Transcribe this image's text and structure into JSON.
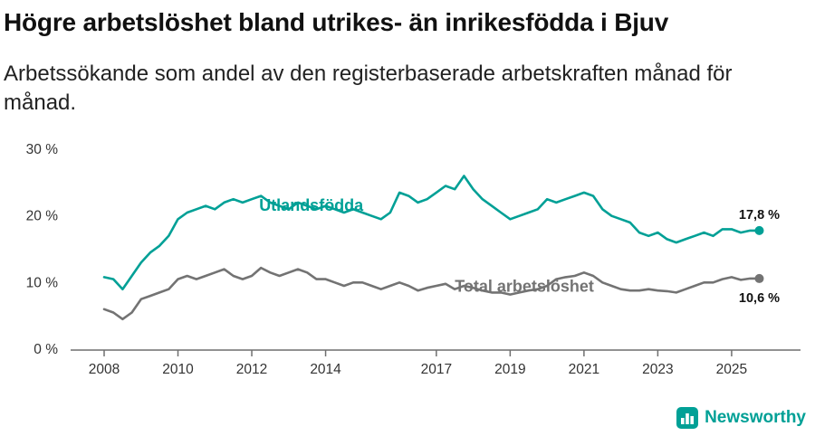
{
  "header": {
    "title": "Högre arbetslöshet bland utrikes- än inrikesfödda i Bjuv",
    "subtitle": "Arbetssökande som andel av den registerbaserade arbetskraften månad för månad."
  },
  "footer": {
    "brand": "Newsworthy"
  },
  "colors": {
    "accent": "#00a096",
    "total_line": "#737373",
    "axis": "#6f6f6f",
    "tick_text": "#333333"
  },
  "chart_data": {
    "type": "line",
    "title": "Högre arbetslöshet bland utrikes- än inrikesfödda i Bjuv",
    "subtitle": "Arbetssökande som andel av den registerbaserade arbetskraften månad för månad.",
    "xlabel": "",
    "ylabel": "",
    "ylim": [
      0,
      30
    ],
    "xlim": [
      2007.6,
      2026.3
    ],
    "grid": false,
    "legend": "inline-labels",
    "yticks": [
      0,
      10,
      20,
      30
    ],
    "ytick_labels": [
      "0 %",
      "10 %",
      "20 %",
      "30 %"
    ],
    "xticks": [
      2008,
      2010,
      2012,
      2014,
      2017,
      2019,
      2021,
      2023,
      2025
    ],
    "xtick_labels": [
      "2008",
      "2010",
      "2012",
      "2014",
      "2017",
      "2019",
      "2021",
      "2023",
      "2025"
    ],
    "x": [
      2008,
      2008.25,
      2008.5,
      2008.75,
      2009,
      2009.25,
      2009.5,
      2009.75,
      2010,
      2010.25,
      2010.5,
      2010.75,
      2011,
      2011.25,
      2011.5,
      2011.75,
      2012,
      2012.25,
      2012.5,
      2012.75,
      2013,
      2013.25,
      2013.5,
      2013.75,
      2014,
      2014.25,
      2014.5,
      2014.75,
      2015,
      2015.25,
      2015.5,
      2015.75,
      2016,
      2016.25,
      2016.5,
      2016.75,
      2017,
      2017.25,
      2017.5,
      2017.75,
      2018,
      2018.25,
      2018.5,
      2018.75,
      2019,
      2019.25,
      2019.5,
      2019.75,
      2020,
      2020.25,
      2020.5,
      2020.75,
      2021,
      2021.25,
      2021.5,
      2021.75,
      2022,
      2022.25,
      2022.5,
      2022.75,
      2023,
      2023.25,
      2023.5,
      2023.75,
      2024,
      2024.25,
      2024.5,
      2024.75,
      2025,
      2025.25,
      2025.5,
      2025.75
    ],
    "series": [
      {
        "name": "Utlandsfödda",
        "color": "#00a096",
        "end_label": "17,8 %",
        "end_value": 17.8,
        "end_label_offset": -13,
        "label_x": 2012.2,
        "label_y": 20.8,
        "values": [
          10.8,
          10.5,
          9.0,
          11.0,
          13.0,
          14.5,
          15.5,
          17.0,
          19.5,
          20.5,
          21.0,
          21.5,
          21.0,
          22.0,
          22.5,
          22.0,
          22.5,
          23.0,
          22.0,
          21.5,
          21.0,
          22.0,
          21.5,
          21.0,
          21.5,
          21.0,
          20.5,
          21.0,
          20.5,
          20.0,
          19.5,
          20.5,
          23.5,
          23.0,
          22.0,
          22.5,
          23.5,
          24.5,
          24.0,
          26.0,
          24.0,
          22.5,
          21.5,
          20.5,
          19.5,
          20.0,
          20.5,
          21.0,
          22.5,
          22.0,
          22.5,
          23.0,
          23.5,
          23.0,
          21.0,
          20.0,
          19.5,
          19.0,
          17.5,
          17.0,
          17.5,
          16.5,
          16.0,
          16.5,
          17.0,
          17.5,
          17.0,
          18.0,
          18.0,
          17.5,
          17.8,
          17.8
        ]
      },
      {
        "name": "Total arbetslöshet",
        "color": "#737373",
        "end_label": "10,6 %",
        "end_value": 10.6,
        "end_label_offset": 26,
        "label_x": 2017.5,
        "label_y": 8.6,
        "values": [
          6.0,
          5.5,
          4.5,
          5.5,
          7.5,
          8.0,
          8.5,
          9.0,
          10.5,
          11.0,
          10.5,
          11.0,
          11.5,
          12.0,
          11.0,
          10.5,
          11.0,
          12.2,
          11.5,
          11.0,
          11.5,
          12.0,
          11.5,
          10.5,
          10.5,
          10.0,
          9.5,
          10.0,
          10.0,
          9.5,
          9.0,
          9.5,
          10.0,
          9.5,
          8.8,
          9.2,
          9.5,
          9.8,
          9.0,
          9.5,
          9.2,
          8.8,
          8.5,
          8.5,
          8.2,
          8.5,
          8.8,
          9.0,
          9.5,
          10.5,
          10.8,
          11.0,
          11.5,
          11.0,
          10.0,
          9.5,
          9.0,
          8.8,
          8.8,
          9.0,
          8.8,
          8.7,
          8.5,
          9.0,
          9.5,
          10.0,
          10.0,
          10.5,
          10.8,
          10.4,
          10.6,
          10.6
        ]
      }
    ]
  }
}
